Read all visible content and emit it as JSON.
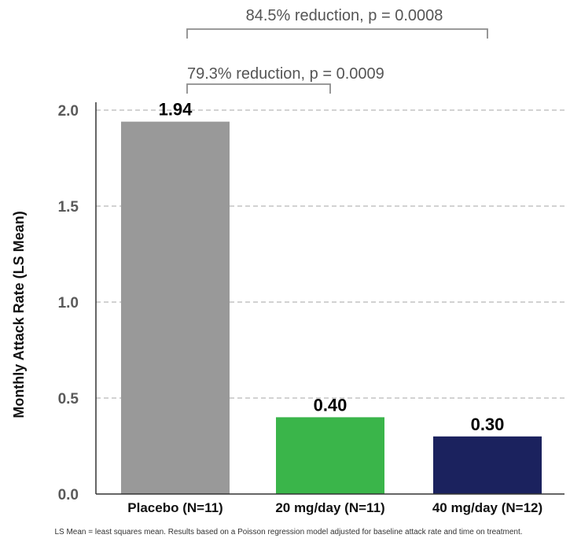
{
  "chart_data": {
    "type": "bar",
    "categories": [
      "Placebo (N=11)",
      "20 mg/day (N=11)",
      "40 mg/day (N=12)"
    ],
    "values": [
      1.94,
      0.4,
      0.3
    ],
    "value_labels": [
      "1.94",
      "0.40",
      "0.30"
    ],
    "colors": [
      "#999999",
      "#3ab54a",
      "#1b225e"
    ],
    "ylabel": "Monthly Attack Rate (LS Mean)",
    "ylim": [
      0,
      2.0
    ],
    "yticks": [
      "0.0",
      "0.5",
      "1.0",
      "1.5",
      "2.0"
    ],
    "ytick_values": [
      0,
      0.5,
      1.0,
      1.5,
      2.0
    ],
    "grid": "horizontal dashed",
    "annotations": [
      {
        "text": "84.5% reduction, p = 0.0008",
        "from": 0,
        "to": 2
      },
      {
        "text": "79.3% reduction, p = 0.0009",
        "from": 0,
        "to": 1
      }
    ],
    "footnote": "LS Mean = least squares mean. Results based on a Poisson regression model adjusted for baseline attack rate and time on treatment."
  }
}
